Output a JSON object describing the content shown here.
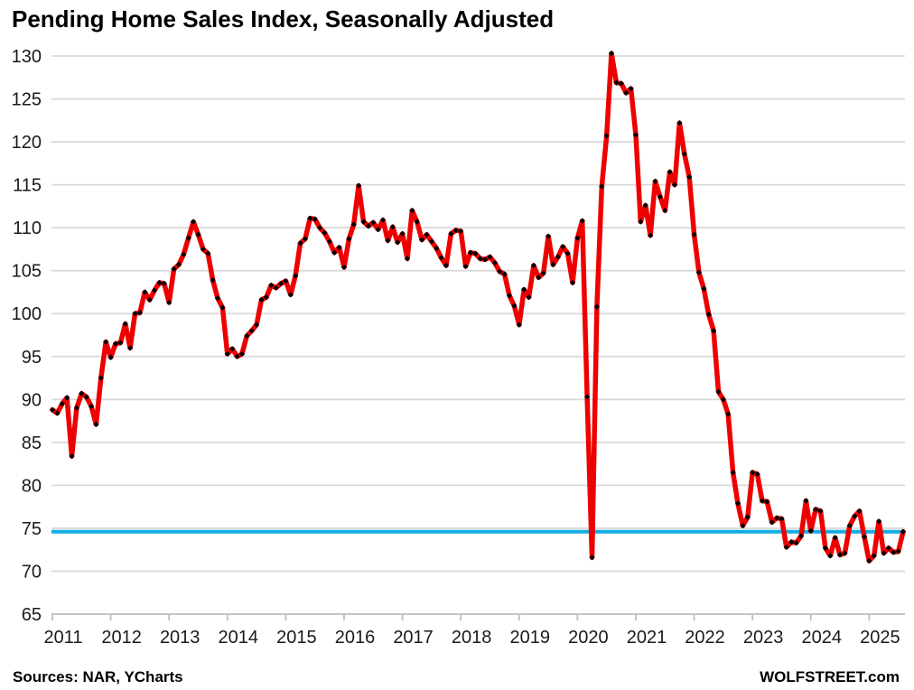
{
  "header": {
    "title": "Pending Home Sales Index, Seasonally Adjusted"
  },
  "footer": {
    "sources": "Sources: NAR, YCharts",
    "brand": "WOLFSTREET.com"
  },
  "chart_data": {
    "type": "line",
    "title": "Pending Home Sales Index, Seasonally Adjusted",
    "frequency": "monthly",
    "start": {
      "year": 2011,
      "month": 1
    },
    "end": {
      "year": 2025,
      "month": 8
    },
    "ylim": [
      65,
      130
    ],
    "y_ticks": [
      65,
      70,
      75,
      80,
      85,
      90,
      95,
      100,
      105,
      110,
      115,
      120,
      125,
      130
    ],
    "x_tick_years": [
      "2011",
      "2012",
      "2013",
      "2014",
      "2015",
      "2016",
      "2017",
      "2018",
      "2019",
      "2020",
      "2021",
      "2022",
      "2023",
      "2024",
      "2025"
    ],
    "grid": true,
    "legend": "none",
    "colors": {
      "series": "#ee0000",
      "marker": "#000000",
      "baseline": "#12ade3",
      "grid": "#d9d9d9",
      "axis": "#bdbdbd",
      "tick_text": "#1a1a1a"
    },
    "baseline": {
      "value": 74.6
    },
    "series": [
      {
        "name": "Pending Home Sales Index (seasonally adjusted)",
        "values": [
          88.8,
          88.4,
          89.5,
          90.2,
          83.4,
          89.0,
          90.7,
          90.3,
          89.2,
          87.1,
          92.5,
          96.7,
          94.9,
          96.5,
          96.6,
          98.8,
          96.0,
          100.0,
          100.1,
          102.5,
          101.6,
          102.7,
          103.6,
          103.5,
          101.3,
          105.2,
          105.7,
          106.9,
          108.8,
          110.7,
          109.2,
          107.5,
          107.0,
          103.9,
          101.8,
          100.7,
          95.3,
          95.9,
          95.0,
          95.3,
          97.4,
          98.0,
          98.7,
          101.6,
          101.9,
          103.3,
          103.0,
          103.5,
          103.8,
          102.2,
          104.4,
          108.2,
          108.7,
          111.1,
          111.0,
          110.0,
          109.4,
          108.4,
          107.1,
          107.7,
          105.4,
          108.7,
          110.4,
          114.9,
          110.7,
          110.2,
          110.6,
          109.8,
          110.9,
          108.5,
          110.1,
          108.3,
          109.3,
          106.4,
          112.0,
          110.7,
          108.6,
          109.2,
          108.4,
          107.6,
          106.5,
          105.6,
          109.3,
          109.7,
          109.6,
          105.5,
          107.1,
          107.0,
          106.4,
          106.3,
          106.6,
          105.9,
          104.9,
          104.6,
          102.1,
          100.9,
          98.7,
          102.8,
          101.9,
          105.6,
          104.2,
          104.7,
          109.0,
          105.7,
          106.6,
          107.8,
          107.0,
          103.6,
          108.8,
          110.8,
          90.3,
          71.6,
          100.8,
          114.8,
          120.7,
          130.3,
          126.9,
          126.8,
          125.7,
          126.2,
          120.8,
          110.7,
          112.6,
          109.1,
          115.4,
          113.6,
          112.0,
          116.5,
          115.0,
          122.2,
          118.6,
          115.9,
          109.2,
          104.8,
          102.9,
          99.9,
          98.0,
          90.9,
          90.0,
          88.3,
          81.5,
          77.9,
          75.3,
          76.3,
          81.5,
          81.3,
          78.2,
          78.1,
          75.7,
          76.2,
          76.1,
          72.8,
          73.4,
          73.3,
          74.1,
          78.2,
          74.7,
          77.2,
          77.0,
          72.7,
          71.8,
          73.9,
          71.9,
          72.1,
          75.3,
          76.4,
          77.0,
          74.0,
          71.2,
          71.8,
          75.8,
          72.1,
          72.7,
          72.2,
          72.3,
          74.6
        ]
      }
    ]
  }
}
